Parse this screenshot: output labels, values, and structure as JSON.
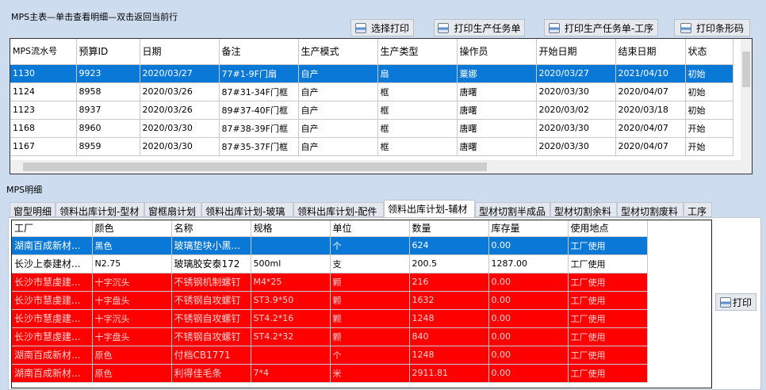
{
  "master": {
    "title": "MPS主表—单击查看明细—双击返回当前行",
    "buttons": [
      "选择打印",
      "打印生产任务单",
      "打印生产任务单-工序",
      "打印条形码"
    ],
    "columns": [
      "MPS流水号",
      "预算ID",
      "日期",
      "备注",
      "生产模式",
      "生产类型",
      "操作员",
      "开始日期",
      "结束日期",
      "状态"
    ],
    "rows": [
      [
        "1130",
        "9923",
        "2020/03/27",
        "77#1-9F门扇",
        "自产",
        "扇",
        "粟娜",
        "2020/03/27",
        "2021/04/10",
        "初始"
      ],
      [
        "1124",
        "8958",
        "2020/03/26",
        "87#31-34F门框",
        "自产",
        "框",
        "唐曙",
        "2020/03/30",
        "2020/04/07",
        "初始"
      ],
      [
        "1123",
        "8937",
        "2020/03/26",
        "89#37-40F门框",
        "自产",
        "框",
        "唐曙",
        "2020/03/02",
        "2020/03/18",
        "初始"
      ],
      [
        "1168",
        "8960",
        "2020/03/30",
        "87#38-39F门框",
        "自产",
        "框",
        "唐曙",
        "2020/03/30",
        "2020/04/07",
        "开始"
      ],
      [
        "1167",
        "8959",
        "2020/03/30",
        "87#35-37F门框",
        "自产",
        "框",
        "唐曙",
        "2020/03/30",
        "2020/04/07",
        "开始"
      ]
    ],
    "selected_row": 0
  },
  "detail": {
    "title": "MPS明细",
    "tabs": [
      "窗型明细",
      "领料出库计划-型材",
      "窗框扇计划",
      "领料出库计划-玻璃",
      "领料出库计划-配件",
      "领料出库计划-辅材",
      "型材切割半成品",
      "型材切割余料",
      "型材切割废料",
      "工序"
    ],
    "active_tab": 5,
    "columns": [
      "工厂",
      "颜色",
      "名称",
      "规格",
      "单位",
      "数量",
      "库存量",
      "使用地点"
    ],
    "rows": [
      [
        "湖南百成新材...",
        "黑色",
        "玻璃垫块小黑...",
        "",
        "个",
        "624",
        "0.00",
        "工厂使用"
      ],
      [
        "长沙上泰建材...",
        "N2.75",
        "玻璃胶安泰172",
        "500ml",
        "支",
        "200.5",
        "1287.00",
        "工厂使用"
      ],
      [
        "长沙市慧虔建...",
        "十字沉头",
        "不锈钢机制螺钉",
        "M4*25",
        "颗",
        "216",
        "0.00",
        "工厂使用"
      ],
      [
        "长沙市慧虔建...",
        "十字盘头",
        "不锈钢自攻螺钉",
        "ST3.9*50",
        "颗",
        "1632",
        "0.00",
        "工厂使用"
      ],
      [
        "长沙市慧虔建...",
        "十字沉头",
        "不锈钢自攻螺钉",
        "ST4.2*16",
        "颗",
        "1248",
        "0.00",
        "工厂使用"
      ],
      [
        "长沙市慧虔建...",
        "十字盘头",
        "不锈钢自攻螺钉",
        "ST4.2*32",
        "颗",
        "840",
        "0.00",
        "工厂使用"
      ],
      [
        "湖南百成新材...",
        "原色",
        "付档CB1771",
        "",
        "个",
        "1248",
        "0.00",
        "工厂使用"
      ],
      [
        "湖南百成新材...",
        "原色",
        "利得佳毛条",
        "7*4",
        "米",
        "2911.81",
        "0.00",
        "工厂使用"
      ]
    ],
    "row_styles": [
      "selected",
      "normal",
      "red",
      "red",
      "red",
      "red",
      "red",
      "red"
    ],
    "print_label": "打印"
  },
  "colors": {
    "selection": "#0a78d7",
    "warning_row": "#ff0000",
    "background": "#cddcef"
  }
}
